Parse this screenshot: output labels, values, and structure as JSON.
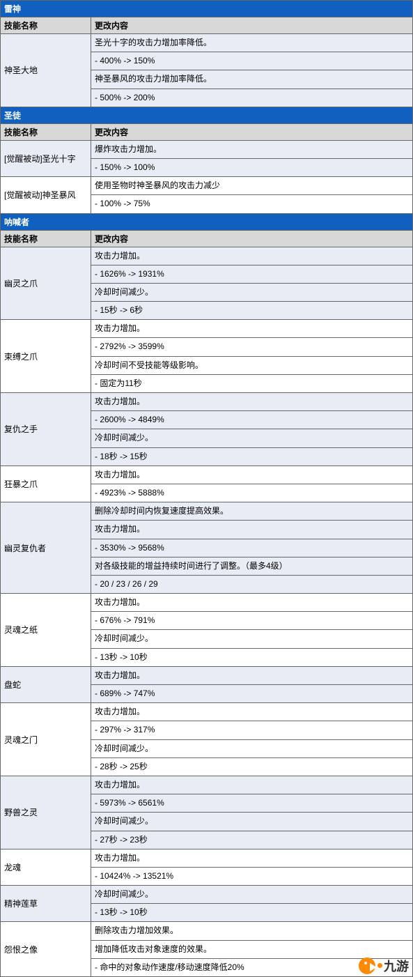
{
  "colors": {
    "header_bg": "#1060c0",
    "header_fg": "#ffffff",
    "subheader_bg": "#d8d8d8",
    "row_even_bg": "#e8ecf4",
    "row_odd_bg": "#ffffff",
    "border": "#666666",
    "logo_orange": "#ff8a00"
  },
  "columns": {
    "name": "技能名称",
    "content": "更改内容"
  },
  "sections": [
    {
      "title": "雷神",
      "rows": [
        {
          "name": "神圣大地",
          "lines": [
            "圣光十字的攻击力增加率降低。",
            "- 400% -> 150%",
            "神圣暴风的攻击力增加率降低。",
            "- 500% -> 200%"
          ]
        }
      ]
    },
    {
      "title": "圣徒",
      "rows": [
        {
          "name": "[觉醒被动]圣光十字",
          "lines": [
            "爆炸攻击力增加。",
            "- 150% -> 100%"
          ]
        },
        {
          "name": "[觉醒被动]神圣暴风",
          "lines": [
            "使用圣物时神圣暴风的攻击力减少",
            "- 100% -> 75%"
          ]
        }
      ]
    },
    {
      "title": "呐喊者",
      "rows": [
        {
          "name": "幽灵之爪",
          "lines": [
            "攻击力增加。",
            "- 1626% -> 1931%",
            "冷却时间减少。",
            "- 15秒 -> 6秒"
          ]
        },
        {
          "name": "束缚之爪",
          "lines": [
            "攻击力增加。",
            "- 2792% -> 3599%",
            "冷却时间不受技能等级影响。",
            "- 固定为11秒"
          ]
        },
        {
          "name": "复仇之手",
          "lines": [
            "攻击力增加。",
            "- 2600% -> 4849%",
            "冷却时间减少。",
            "- 18秒 -> 15秒"
          ]
        },
        {
          "name": "狂暴之爪",
          "lines": [
            "攻击力增加。",
            "- 4923% -> 5888%"
          ]
        },
        {
          "name": "幽灵复仇者",
          "lines": [
            "删除冷却时间内恢复速度提高效果。",
            "攻击力增加。",
            "- 3530% -> 9568%",
            "对各级技能的增益持续时间进行了调整。（最多4级）",
            "- 20 / 23 / 26 / 29"
          ]
        },
        {
          "name": "灵魂之纸",
          "lines": [
            "攻击力增加。",
            "- 676% -> 791%",
            "冷却时间减少。",
            "- 13秒 -> 10秒"
          ]
        },
        {
          "name": "盘蛇",
          "lines": [
            "攻击力增加。",
            "- 689% -> 747%"
          ]
        },
        {
          "name": "灵魂之门",
          "lines": [
            "攻击力增加。",
            "- 297% -> 317%",
            "冷却时间减少。",
            "- 28秒 -> 25秒"
          ]
        },
        {
          "name": "野兽之灵",
          "lines": [
            "攻击力增加。",
            "- 5973% -> 6561%",
            "冷却时间减少。",
            "- 27秒 -> 23秒"
          ]
        },
        {
          "name": "龙魂",
          "lines": [
            "攻击力增加。",
            "- 10424% -> 13521%"
          ]
        },
        {
          "name": "精神莲草",
          "lines": [
            "冷却时间减少。",
            "- 13秒 -> 10秒"
          ]
        },
        {
          "name": "怨恨之像",
          "lines": [
            "删除攻击力增加效果。",
            "增加降低攻击对象速度的效果。",
            "- 命中的对象动作速度/移动速度降低20%"
          ]
        }
      ]
    }
  ],
  "logo": {
    "text": "九游"
  }
}
